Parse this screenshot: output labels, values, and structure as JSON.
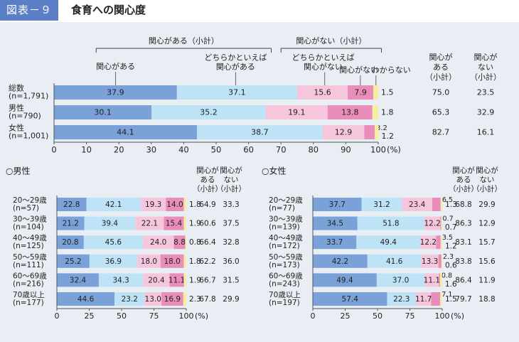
{
  "header": {
    "figure_label": "図表－９",
    "title": "食育への関心度"
  },
  "colors": {
    "very": "#7aa2d9",
    "somewhat": "#bfe3f6",
    "not_very": "#f6c6dd",
    "not_at_all": "#e98dba",
    "dont_know": "#f7eea0"
  },
  "chart_data": [
    {
      "type": "bar",
      "stacked": true,
      "orientation": "horizontal",
      "brackets": [
        {
          "label": "関心がある（小計）"
        },
        {
          "label": "関心がない（小計）"
        }
      ],
      "legend": [
        {
          "label": "関心がある"
        },
        {
          "label": "どちらかといえば 関心がある"
        },
        {
          "label": "どちらかといえば 関心がない"
        },
        {
          "label": "関心がない"
        },
        {
          "label": "わからない"
        }
      ],
      "col_headers": [
        "関心が ある （小計）",
        "関心が ない （小計）"
      ],
      "categories": [
        "総数 (n=1,791)",
        "男性 (n=790)",
        "女性 (n=1,001)"
      ],
      "series": [
        {
          "name": "関心がある",
          "values": [
            37.9,
            30.1,
            44.1
          ]
        },
        {
          "name": "どちらかといえば関心がある",
          "values": [
            37.1,
            35.2,
            38.7
          ]
        },
        {
          "name": "どちらかといえば関心がない",
          "values": [
            15.6,
            19.1,
            12.9
          ]
        },
        {
          "name": "関心がない",
          "values": [
            7.9,
            13.8,
            3.2
          ]
        },
        {
          "name": "わからない",
          "values": [
            1.5,
            1.8,
            1.2
          ]
        }
      ],
      "subtotal_interested": [
        75.0,
        65.3,
        82.7
      ],
      "subtotal_not_interested": [
        23.5,
        32.9,
        16.1
      ],
      "ticks": [
        "0",
        "10",
        "20",
        "30",
        "40",
        "50",
        "60",
        "70",
        "80",
        "90",
        "100"
      ],
      "unit": "(%)",
      "xlim": [
        0,
        100
      ]
    },
    {
      "type": "bar",
      "stacked": true,
      "orientation": "horizontal",
      "title": "○男性",
      "col_headers": [
        "関心が ある （小計）",
        "関心が ない （小計）"
      ],
      "categories": [
        "20～29歳 (n=57)",
        "30～39歳 (n=104)",
        "40～49歳 (n=125)",
        "50～59歳 (n=111)",
        "60～69歳 (n=216)",
        "70歳以上 (n=177)"
      ],
      "series": [
        {
          "name": "関心がある",
          "values": [
            22.8,
            21.2,
            20.8,
            25.2,
            32.4,
            44.6
          ]
        },
        {
          "name": "どちらかといえば関心がある",
          "values": [
            42.1,
            39.4,
            45.6,
            36.9,
            34.3,
            23.2
          ]
        },
        {
          "name": "どちらかといえば関心がない",
          "values": [
            19.3,
            22.1,
            24.0,
            18.0,
            20.4,
            13.0
          ]
        },
        {
          "name": "関心がない",
          "values": [
            14.0,
            15.4,
            8.8,
            18.0,
            11.1,
            16.9
          ]
        },
        {
          "name": "わからない",
          "values": [
            1.8,
            1.9,
            0.8,
            1.8,
            1.9,
            2.3
          ]
        }
      ],
      "subtotal_interested": [
        64.9,
        60.6,
        66.4,
        62.2,
        66.7,
        67.8
      ],
      "subtotal_not_interested": [
        33.3,
        37.5,
        32.8,
        36.0,
        31.5,
        29.9
      ],
      "ticks": [
        "0",
        "25",
        "50",
        "75",
        "100"
      ],
      "unit": "(%)",
      "xlim": [
        0,
        100
      ]
    },
    {
      "type": "bar",
      "stacked": true,
      "orientation": "horizontal",
      "title": "○女性",
      "col_headers": [
        "関心が ある （小計）",
        "関心が ない （小計）"
      ],
      "categories": [
        "20～29歳 (n=77)",
        "30～39歳 (n=139)",
        "40～49歳 (n=172)",
        "50～59歳 (n=173)",
        "60～69歳 (n=243)",
        "70歳以上 (n=197)"
      ],
      "series": [
        {
          "name": "関心がある",
          "values": [
            37.7,
            34.5,
            33.7,
            42.2,
            49.4,
            57.4
          ]
        },
        {
          "name": "どちらかといえば関心がある",
          "values": [
            31.2,
            51.8,
            49.4,
            41.6,
            37.0,
            22.3
          ]
        },
        {
          "name": "どちらかといえば関心がない",
          "values": [
            23.4,
            12.2,
            12.2,
            13.3,
            11.1,
            11.7
          ]
        },
        {
          "name": "関心がない",
          "values": [
            6.5,
            0.7,
            3.5,
            2.3,
            0.8,
            7.1
          ]
        },
        {
          "name": "わからない",
          "values": [
            1.3,
            0.7,
            1.2,
            0.6,
            1.6,
            1.5
          ]
        }
      ],
      "subtotal_interested": [
        68.8,
        86.3,
        83.1,
        83.8,
        86.4,
        79.7
      ],
      "subtotal_not_interested": [
        29.9,
        12.9,
        15.7,
        15.6,
        11.9,
        18.8
      ],
      "ticks": [
        "0",
        "25",
        "50",
        "75",
        "100"
      ],
      "unit": "(%)",
      "xlim": [
        0,
        100
      ]
    }
  ]
}
